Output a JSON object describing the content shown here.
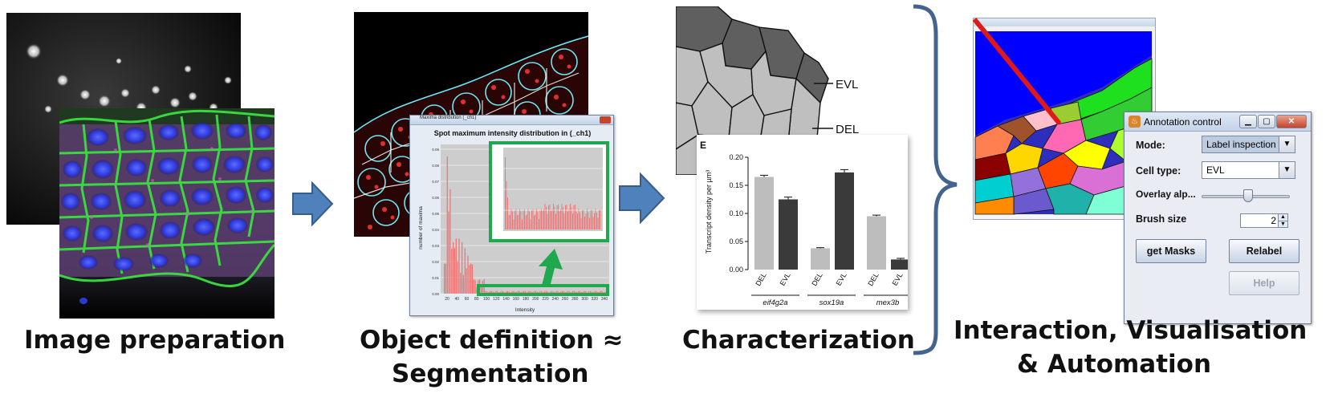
{
  "captions": {
    "stage1": "Image preparation",
    "stage2_line1": "Object definition ≈",
    "stage2_line2": "Segmentation",
    "stage3": "Characterization",
    "stage4_line1": "Interaction, Visualisation",
    "stage4_line2": "& Automation"
  },
  "histogram_window": {
    "title_bar": "Maxima distribution (_ch1)",
    "plot_title": "Spot maximum intensity distribution in (_ch1)",
    "ylabel": "number of maxima",
    "xlabel": "Intensity",
    "xticks": [
      "20",
      "40",
      "60",
      "80",
      "100",
      "120",
      "140",
      "160",
      "180",
      "200",
      "220",
      "240",
      "260",
      "280",
      "300",
      "320",
      "340"
    ],
    "yticks": [
      "0.00",
      "0.01",
      "0.02",
      "0.03",
      "0.04",
      "0.05",
      "0.06",
      "0.07",
      "0.08",
      "0.09"
    ]
  },
  "layer_labels": {
    "evl": "EVL",
    "del": "DEL"
  },
  "chart_data": {
    "type": "bar",
    "panel_label": "E",
    "ylabel": "Transcript density per µm³",
    "ylim": [
      0,
      0.2
    ],
    "yticks": [
      "0.00",
      "0.05",
      "0.10",
      "0.15",
      "0.20"
    ],
    "categories": [
      "DEL",
      "EVL",
      "DEL",
      "EVL",
      "DEL",
      "EVL"
    ],
    "groups": [
      "eif4g2a",
      "sox19a",
      "mex3b"
    ],
    "values": [
      0.165,
      0.125,
      0.038,
      0.173,
      0.095,
      0.018
    ],
    "errors": [
      0.003,
      0.004,
      0.001,
      0.005,
      0.002,
      0.002
    ],
    "colors": [
      "#bdbdbd",
      "#3a3a3a",
      "#bdbdbd",
      "#3a3a3a",
      "#bdbdbd",
      "#3a3a3a"
    ]
  },
  "annotation_control": {
    "title": "Annotation control",
    "mode_label": "Mode:",
    "mode_value": "Label inspection",
    "celltype_label": "Cell type:",
    "celltype_value": "EVL",
    "overlay_label": "Overlay alp...",
    "overlay_alpha": 0.5,
    "brush_label": "Brush size",
    "brush_value": "2",
    "get_masks": "get Masks",
    "relabel": "Relabel",
    "help": "Help"
  },
  "colors": {
    "arrow_fill": "#4f81bd",
    "arrow_stroke": "#385d8a",
    "brace": "#44648e",
    "highlight_green": "#1fa84d",
    "histogram_bar": "#f07070",
    "segmentation_red": "#e03030",
    "segmentation_cyan": "#6fe6f2"
  }
}
